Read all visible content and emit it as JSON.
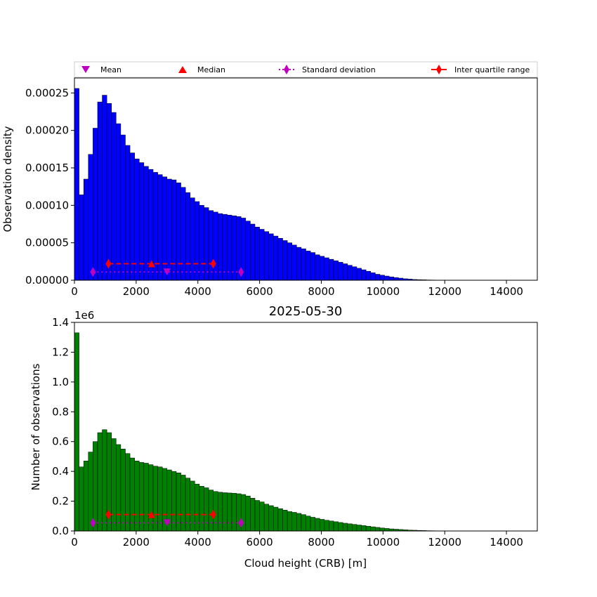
{
  "legend": {
    "location": "top, above upper panel",
    "entries": [
      {
        "label": "Mean",
        "marker": "triangle-down-icon",
        "color": "#bf00bf"
      },
      {
        "label": "Median",
        "marker": "triangle-up-icon",
        "color": "#ff0000"
      },
      {
        "label": "Standard deviation",
        "marker": "diamond-icon",
        "color": "#bf00bf",
        "line": "dotted"
      },
      {
        "label": "Inter quartile range",
        "marker": "diamond-icon",
        "color": "#ff0000",
        "line": "solid"
      }
    ]
  },
  "chart_data": [
    {
      "type": "bar",
      "title": "",
      "xlabel": "",
      "ylabel": "Observation density",
      "color": "#0000ff",
      "edgecolor": "#000000",
      "xlim": [
        0,
        15000
      ],
      "ylim": [
        0,
        0.00027
      ],
      "bin_width": 150,
      "x_ticks": [
        "0",
        "2000",
        "4000",
        "6000",
        "8000",
        "10000",
        "12000",
        "14000"
      ],
      "y_ticks": [
        "0.00000",
        "0.00005",
        "0.00010",
        "0.00015",
        "0.00020",
        "0.00025"
      ],
      "y_tick_values": [
        0,
        5e-05,
        0.0001,
        0.00015,
        0.0002,
        0.00025
      ],
      "values": [
        0.000256,
        0.000114,
        0.000135,
        0.000168,
        0.000203,
        0.000238,
        0.000247,
        0.000236,
        0.000224,
        0.000209,
        0.000194,
        0.00018,
        0.00017,
        0.000162,
        0.000157,
        0.000152,
        0.000148,
        0.000144,
        0.000141,
        0.000138,
        0.000135,
        0.000134,
        0.00013,
        0.000124,
        0.000117,
        0.00011,
        0.000105,
        0.0001,
        9.7e-05,
        9.3e-05,
        9.1e-05,
        8.9e-05,
        8.8e-05,
        8.7e-05,
        8.6e-05,
        8.5e-05,
        8.3e-05,
        7.9e-05,
        7.5e-05,
        7.1e-05,
        6.8e-05,
        6.5e-05,
        6.2e-05,
        5.9e-05,
        5.6e-05,
        5.3e-05,
        5e-05,
        4.7e-05,
        4.4e-05,
        4.2e-05,
        3.9e-05,
        3.7e-05,
        3.4e-05,
        3.2e-05,
        3e-05,
        2.8e-05,
        2.6e-05,
        2.4e-05,
        2.2e-05,
        2e-05,
        1.8e-05,
        1.6e-05,
        1.4e-05,
        1.2e-05,
        1e-05,
        8e-06,
        6.8e-06,
        5.6e-06,
        4.5e-06,
        3.6e-06,
        2.8e-06,
        2e-06,
        1.5e-06,
        1e-06,
        8e-07,
        6e-07,
        4e-07,
        3e-07,
        2e-07,
        1e-07,
        8e-08
      ],
      "stats": {
        "mean": {
          "x": 3000,
          "y": 1.1e-05
        },
        "median": {
          "x": 2500,
          "y": 2.2e-05
        },
        "std_range": [
          600,
          5400
        ],
        "std_y": 1.1e-05,
        "iqr_range": [
          1100,
          4500
        ],
        "iqr_y": 2.2e-05
      }
    },
    {
      "type": "bar",
      "title": "2025-05-30",
      "xlabel": "Cloud height (CRB) [m]",
      "ylabel": "Number of observations",
      "scale_label": "1e6",
      "color": "#008000",
      "edgecolor": "#000000",
      "xlim": [
        0,
        15000
      ],
      "ylim": [
        0,
        1.4
      ],
      "bin_width": 150,
      "x_ticks": [
        "0",
        "2000",
        "4000",
        "6000",
        "8000",
        "10000",
        "12000",
        "14000"
      ],
      "y_ticks": [
        "0.0",
        "0.2",
        "0.4",
        "0.6",
        "0.8",
        "1.0",
        "1.2",
        "1.4"
      ],
      "y_tick_values": [
        0,
        0.2,
        0.4,
        0.6,
        0.8,
        1.0,
        1.2,
        1.4
      ],
      "values": [
        1.33,
        0.43,
        0.47,
        0.53,
        0.6,
        0.66,
        0.68,
        0.66,
        0.62,
        0.58,
        0.55,
        0.52,
        0.49,
        0.47,
        0.46,
        0.455,
        0.445,
        0.435,
        0.43,
        0.42,
        0.41,
        0.4,
        0.39,
        0.375,
        0.355,
        0.335,
        0.315,
        0.3,
        0.29,
        0.275,
        0.265,
        0.26,
        0.257,
        0.255,
        0.253,
        0.25,
        0.245,
        0.235,
        0.22,
        0.205,
        0.195,
        0.18,
        0.17,
        0.16,
        0.15,
        0.14,
        0.13,
        0.125,
        0.118,
        0.11,
        0.1,
        0.092,
        0.085,
        0.078,
        0.072,
        0.067,
        0.062,
        0.057,
        0.052,
        0.048,
        0.044,
        0.04,
        0.036,
        0.032,
        0.028,
        0.024,
        0.02,
        0.017,
        0.014,
        0.012,
        0.01,
        0.008,
        0.006,
        0.005,
        0.004,
        0.003,
        0.002,
        0.0016,
        0.0012,
        0.0009,
        0.0007
      ],
      "stats": {
        "mean": {
          "x": 3000,
          "y": 0.055
        },
        "median": {
          "x": 2500,
          "y": 0.11
        },
        "std_range": [
          600,
          5400
        ],
        "std_y": 0.055,
        "iqr_range": [
          1100,
          4500
        ],
        "iqr_y": 0.11
      }
    }
  ]
}
